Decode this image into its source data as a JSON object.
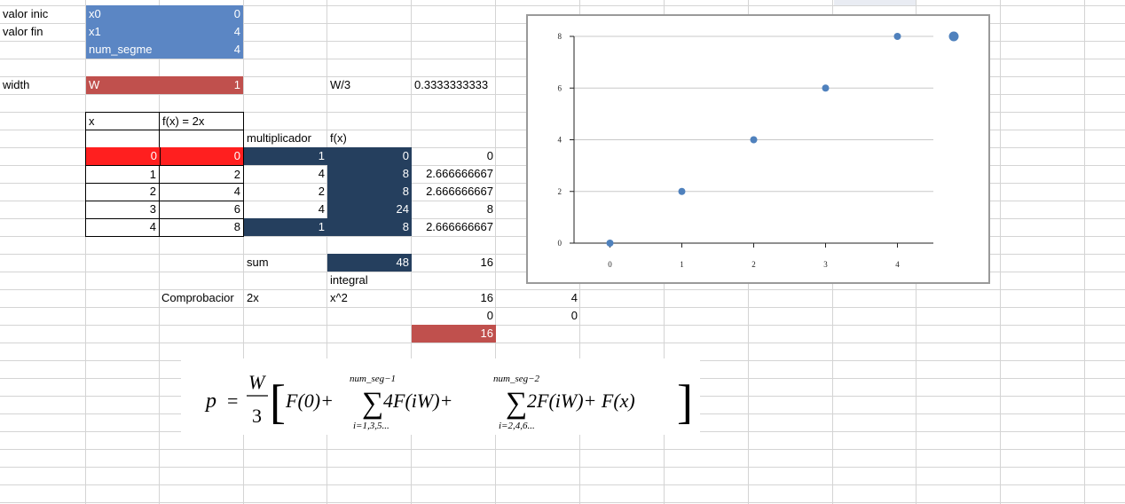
{
  "sheet": {
    "cells": {
      "a1": "valor inic",
      "b1": "x0",
      "c1": "0",
      "a2": "valor fin",
      "b2": "x1",
      "c2": "4",
      "b3": "num_segme",
      "c3": "4",
      "a5": "width",
      "b5": "W",
      "c5": "1",
      "e5": "W/3",
      "f5": "0.3333333333",
      "b7": "x",
      "c7": "f(x) = 2x",
      "d8": "multiplicador",
      "e8": "f(x)",
      "b9": "0",
      "c9": "0",
      "d9": "1",
      "e9": "0",
      "f9": "0",
      "b10": "1",
      "c10": "2",
      "d10": "4",
      "e10": "8",
      "f10": "2.666666667",
      "b11": "2",
      "c11": "4",
      "d11": "2",
      "e11": "8",
      "f11": "2.666666667",
      "b12": "3",
      "c12": "6",
      "d12": "4",
      "e12": "24",
      "f12": "8",
      "b13": "4",
      "c13": "8",
      "d13": "1",
      "e13": "8",
      "f13": "2.666666667",
      "d15": "sum",
      "e15": "48",
      "f15": "16",
      "e16": "integral",
      "c17": "Comprobacior",
      "d17": "2x",
      "e17": "x^2",
      "f17": "16",
      "g17": "4",
      "f18": "0",
      "g18": "0",
      "f19": "16"
    }
  },
  "chart_data": {
    "type": "scatter",
    "title": "",
    "xlabel": "",
    "ylabel": "",
    "x": [
      0,
      1,
      2,
      3,
      4
    ],
    "y": [
      0,
      2,
      4,
      6,
      8
    ],
    "xlim": [
      -0.5,
      4.5
    ],
    "ylim": [
      0,
      8
    ],
    "x_ticks": [
      "0",
      "1",
      "2",
      "3",
      "4"
    ],
    "y_ticks": [
      "0",
      "2",
      "4",
      "6",
      "8"
    ],
    "grid": "horizontal",
    "marker_color": "#4f81bd",
    "legend": [
      {
        "label": "",
        "color": "#4f81bd"
      }
    ]
  },
  "formula": {
    "lhs": "p",
    "eq": "=",
    "frac_num": "W",
    "frac_den": "3",
    "lbracket": "[",
    "rbracket": "]",
    "term1": "F(0)+",
    "sum1_upper": "num_seg−1",
    "sum1_lower": "i=1,3,5...",
    "sum1_body": "4F(iW)+",
    "sum2_upper": "num_seg−2",
    "sum2_lower": "i=2,4,6...",
    "sum2_body": "2F(iW)+ F(x)",
    "sigma": "∑"
  }
}
